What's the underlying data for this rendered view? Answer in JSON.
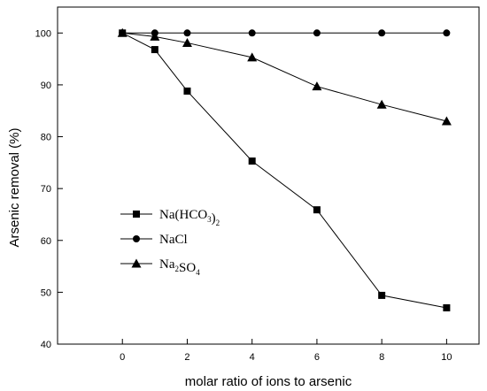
{
  "chart_data": {
    "type": "line",
    "title": "",
    "xlabel": "molar ratio of ions to arsenic",
    "ylabel": "Arsenic removal (%)",
    "xlim": [
      -2,
      11
    ],
    "ylim": [
      40,
      105
    ],
    "xticks": [
      0,
      2,
      4,
      6,
      8,
      10
    ],
    "yticks": [
      40,
      50,
      60,
      70,
      80,
      90,
      100
    ],
    "grid": false,
    "legend_position": "center-left",
    "series": [
      {
        "name": "Na(HCO3)2",
        "legend_parts": [
          {
            "text": "Na(HCO",
            "sub": false
          },
          {
            "text": "3",
            "sub": true
          },
          {
            "text": ")",
            "sub": false
          },
          {
            "text": "2",
            "sub": true
          }
        ],
        "marker": "square",
        "x": [
          0,
          1,
          2,
          4,
          6,
          8,
          10
        ],
        "values": [
          100,
          96.8,
          88.8,
          75.3,
          65.9,
          49.4,
          47.0
        ]
      },
      {
        "name": "NaCl",
        "legend_parts": [
          {
            "text": "NaCl",
            "sub": false
          }
        ],
        "marker": "circle",
        "x": [
          0,
          1,
          2,
          4,
          6,
          8,
          10
        ],
        "values": [
          100,
          100,
          100,
          100,
          100,
          100,
          100
        ]
      },
      {
        "name": "Na2SO4",
        "legend_parts": [
          {
            "text": "Na",
            "sub": false
          },
          {
            "text": "2",
            "sub": true
          },
          {
            "text": "SO",
            "sub": false
          },
          {
            "text": "4",
            "sub": true
          }
        ],
        "marker": "triangle",
        "x": [
          0,
          1,
          2,
          4,
          6,
          8,
          10
        ],
        "values": [
          100,
          99.3,
          98.1,
          95.3,
          89.7,
          86.2,
          83.0
        ]
      }
    ]
  }
}
